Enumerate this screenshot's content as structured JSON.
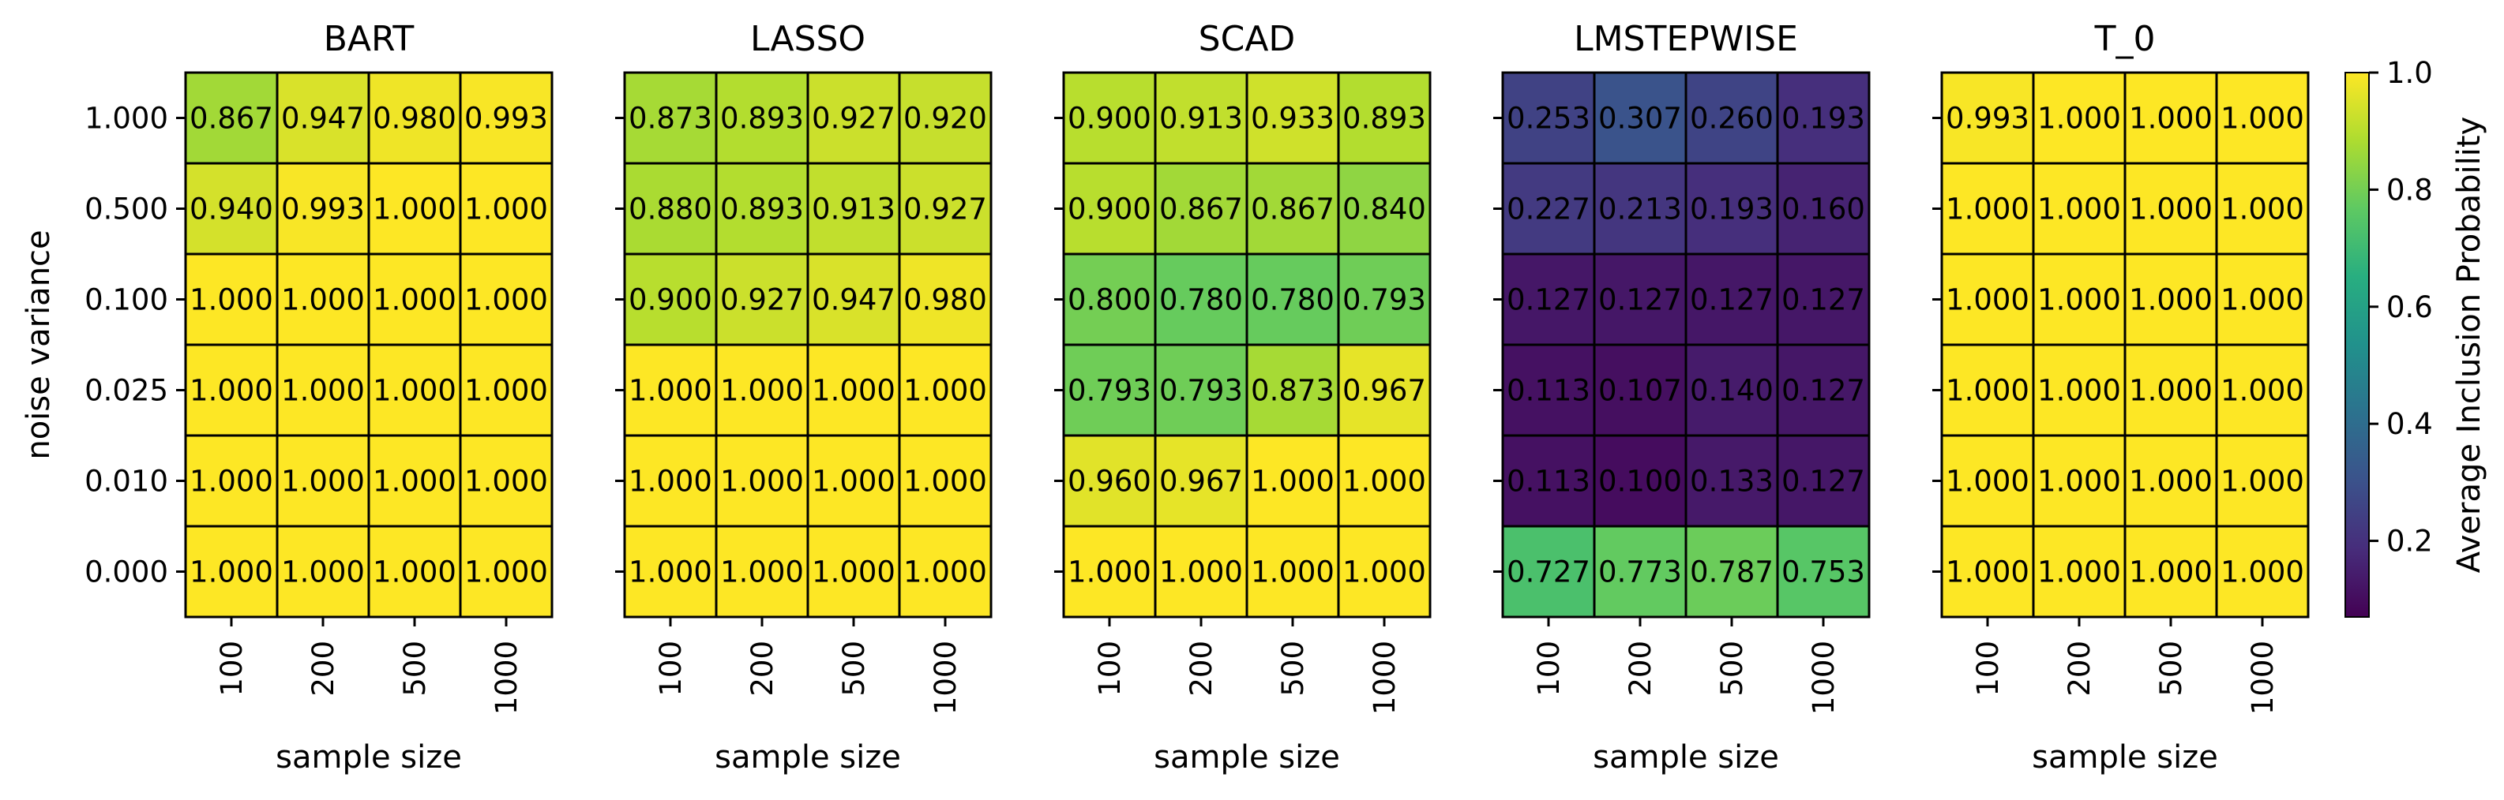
{
  "chart_data": {
    "type": "heatmap",
    "x_categories": [
      "100",
      "200",
      "500",
      "1000"
    ],
    "y_categories": [
      "1.000",
      "0.500",
      "0.100",
      "0.025",
      "0.010",
      "0.000"
    ],
    "xlabel": "sample size",
    "ylabel": "noise variance",
    "panels": [
      {
        "title": "BART",
        "values": [
          [
            0.867,
            0.947,
            0.98,
            0.993
          ],
          [
            0.94,
            0.993,
            1.0,
            1.0
          ],
          [
            1.0,
            1.0,
            1.0,
            1.0
          ],
          [
            1.0,
            1.0,
            1.0,
            1.0
          ],
          [
            1.0,
            1.0,
            1.0,
            1.0
          ],
          [
            1.0,
            1.0,
            1.0,
            1.0
          ]
        ]
      },
      {
        "title": "LASSO",
        "values": [
          [
            0.873,
            0.893,
            0.927,
            0.92
          ],
          [
            0.88,
            0.893,
            0.913,
            0.927
          ],
          [
            0.9,
            0.927,
            0.947,
            0.98
          ],
          [
            1.0,
            1.0,
            1.0,
            1.0
          ],
          [
            1.0,
            1.0,
            1.0,
            1.0
          ],
          [
            1.0,
            1.0,
            1.0,
            1.0
          ]
        ]
      },
      {
        "title": "SCAD",
        "values": [
          [
            0.9,
            0.913,
            0.933,
            0.893
          ],
          [
            0.9,
            0.867,
            0.867,
            0.84
          ],
          [
            0.8,
            0.78,
            0.78,
            0.793
          ],
          [
            0.793,
            0.793,
            0.873,
            0.967
          ],
          [
            0.96,
            0.967,
            1.0,
            1.0
          ],
          [
            1.0,
            1.0,
            1.0,
            1.0
          ]
        ]
      },
      {
        "title": "LMSTEPWISE",
        "values": [
          [
            0.253,
            0.307,
            0.26,
            0.193
          ],
          [
            0.227,
            0.213,
            0.193,
            0.16
          ],
          [
            0.127,
            0.127,
            0.127,
            0.127
          ],
          [
            0.113,
            0.107,
            0.14,
            0.127
          ],
          [
            0.113,
            0.1,
            0.133,
            0.127
          ],
          [
            0.727,
            0.773,
            0.787,
            0.753
          ]
        ]
      },
      {
        "title": "T_0",
        "values": [
          [
            0.993,
            1.0,
            1.0,
            1.0
          ],
          [
            1.0,
            1.0,
            1.0,
            1.0
          ],
          [
            1.0,
            1.0,
            1.0,
            1.0
          ],
          [
            1.0,
            1.0,
            1.0,
            1.0
          ],
          [
            1.0,
            1.0,
            1.0,
            1.0
          ],
          [
            1.0,
            1.0,
            1.0,
            1.0
          ]
        ]
      }
    ],
    "colorbar": {
      "label": "Average Inclusion Probability",
      "range": [
        0.07,
        1.0
      ],
      "ticks": [
        0.2,
        0.4,
        0.6,
        0.8,
        1.0
      ],
      "tick_labels": [
        "0.2",
        "0.4",
        "0.6",
        "0.8",
        "1.0"
      ],
      "colormap": "viridis"
    }
  }
}
